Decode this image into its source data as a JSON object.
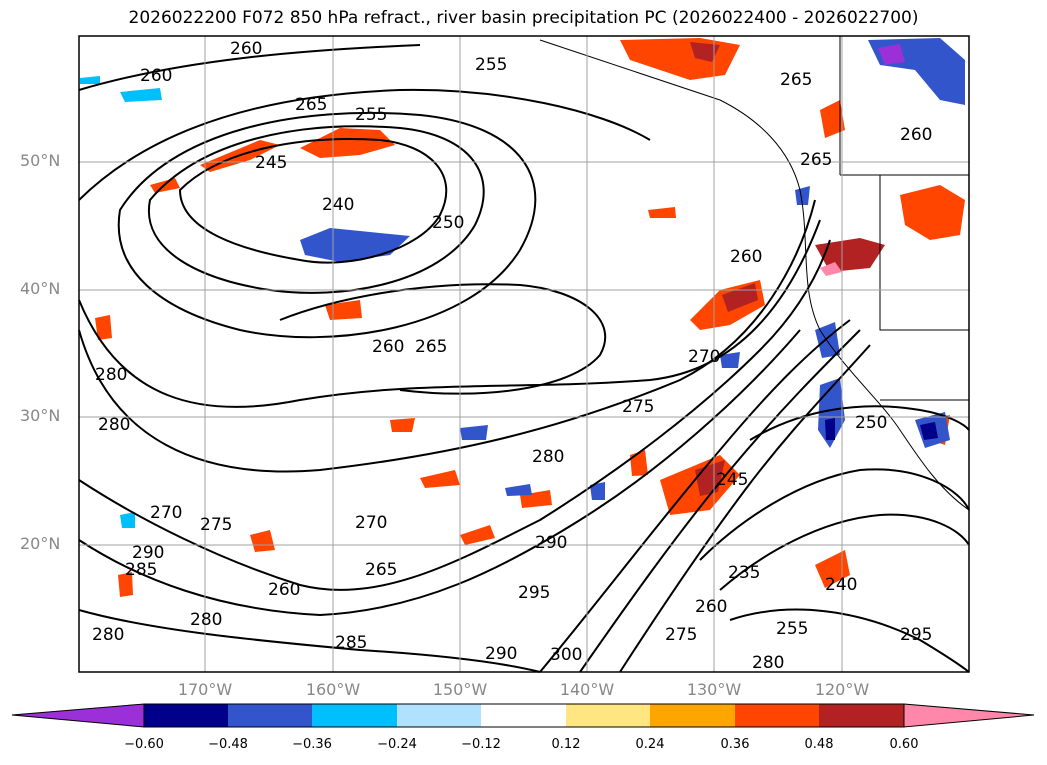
{
  "title": "2026022200 F072 850 hPa refract., river basin precipitation PC (2026022400 - 2026022700)",
  "lat_labels": [
    "50°N",
    "40°N",
    "30°N",
    "20°N"
  ],
  "lon_labels": [
    "170°W",
    "160°W",
    "150°W",
    "140°W",
    "130°W",
    "120°W"
  ],
  "colorbar": {
    "colors": [
      "#9b30d9",
      "#00008b",
      "#3355cc",
      "#00bfff",
      "#b0e2ff",
      "#ffffff",
      "#ffe680",
      "#ffa500",
      "#ff4500",
      "#b22222",
      "#ff88aa"
    ],
    "ticks": [
      "−0.60",
      "−0.48",
      "−0.36",
      "−0.24",
      "−0.12",
      "0.12",
      "0.24",
      "0.36",
      "0.48",
      "0.60"
    ]
  },
  "contour_labels": [
    "260",
    "260",
    "265",
    "255",
    "255",
    "265",
    "260",
    "245",
    "240",
    "250",
    "260",
    "265",
    "260",
    "270",
    "275",
    "265",
    "280",
    "250",
    "280",
    "270",
    "275",
    "290",
    "285",
    "280",
    "290",
    "295",
    "245",
    "235",
    "240",
    "260",
    "255",
    "280",
    "300",
    "290",
    "285",
    "260",
    "265",
    "280",
    "270",
    "275",
    "280",
    "295"
  ]
}
